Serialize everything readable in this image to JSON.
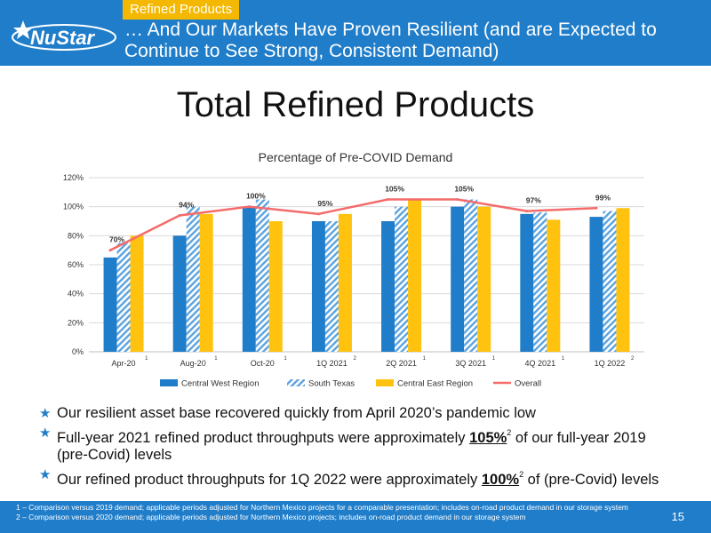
{
  "header": {
    "brand": "NuStar",
    "section_tag": "Refined Products",
    "title": "… And Our Markets Have Proven Resilient (and are Expected to Continue to See Strong, Consistent Demand)"
  },
  "slide_title": "Total Refined Products",
  "chart_data": {
    "type": "bar",
    "title": "Percentage of Pre-COVID Demand",
    "categories": [
      "Apr-20",
      "Aug-20",
      "Oct-20",
      "1Q 2021",
      "2Q 2021",
      "3Q 2021",
      "4Q 2021",
      "1Q 2022"
    ],
    "category_footnotes": [
      "1",
      "1",
      "1",
      "2",
      "1",
      "1",
      "1",
      "2"
    ],
    "series": [
      {
        "name": "Central West Region",
        "type": "bar",
        "color": "#1F7DC9",
        "values": [
          65,
          80,
          100,
          90,
          90,
          100,
          95,
          93
        ]
      },
      {
        "name": "South Texas",
        "type": "bar",
        "pattern": "hatched",
        "color": "#5BA3E0",
        "values": [
          75,
          100,
          105,
          90,
          100,
          105,
          96,
          97
        ]
      },
      {
        "name": "Central East Region",
        "type": "bar",
        "color": "#FFC20E",
        "values": [
          80,
          95,
          90,
          95,
          105,
          100,
          91,
          99
        ]
      },
      {
        "name": "Overall",
        "type": "line",
        "color": "#F46B6B",
        "values": [
          70,
          94,
          100,
          95,
          105,
          105,
          97,
          99
        ]
      }
    ],
    "data_labels": [
      "70%",
      "94%",
      "100%",
      "95%",
      "105%",
      "105%",
      "97%",
      "99%"
    ],
    "y_ticks": [
      "0%",
      "20%",
      "40%",
      "60%",
      "80%",
      "100%",
      "120%"
    ],
    "ylim": [
      0,
      120
    ],
    "grid": true,
    "legend": "bottom"
  },
  "bullets": [
    {
      "pre": "Our resilient asset base recovered quickly from April 2020’s pandemic low",
      "bold": "",
      "sup": "",
      "post": ""
    },
    {
      "pre": "Full-year 2021 refined product throughputs were approximately ",
      "bold": "105%",
      "sup": "2",
      "post": " of our full-year 2019 (pre-Covid) levels"
    },
    {
      "pre": "Our refined product throughputs for 1Q 2022 were approximately ",
      "bold": "100%",
      "sup": "2",
      "post": " of (pre-Covid) levels"
    }
  ],
  "footnotes": [
    "1 – Comparison versus 2019 demand; applicable periods adjusted for Northern Mexico projects for a comparable presentation; includes on-road product demand in our storage system",
    "2 – Comparison versus 2020 demand; applicable periods adjusted for Northern Mexico projects; includes on-road product demand in our storage system"
  ],
  "page_number": "15",
  "colors": {
    "brand_blue": "#1F7DC9",
    "accent_yellow": "#F5B800"
  }
}
